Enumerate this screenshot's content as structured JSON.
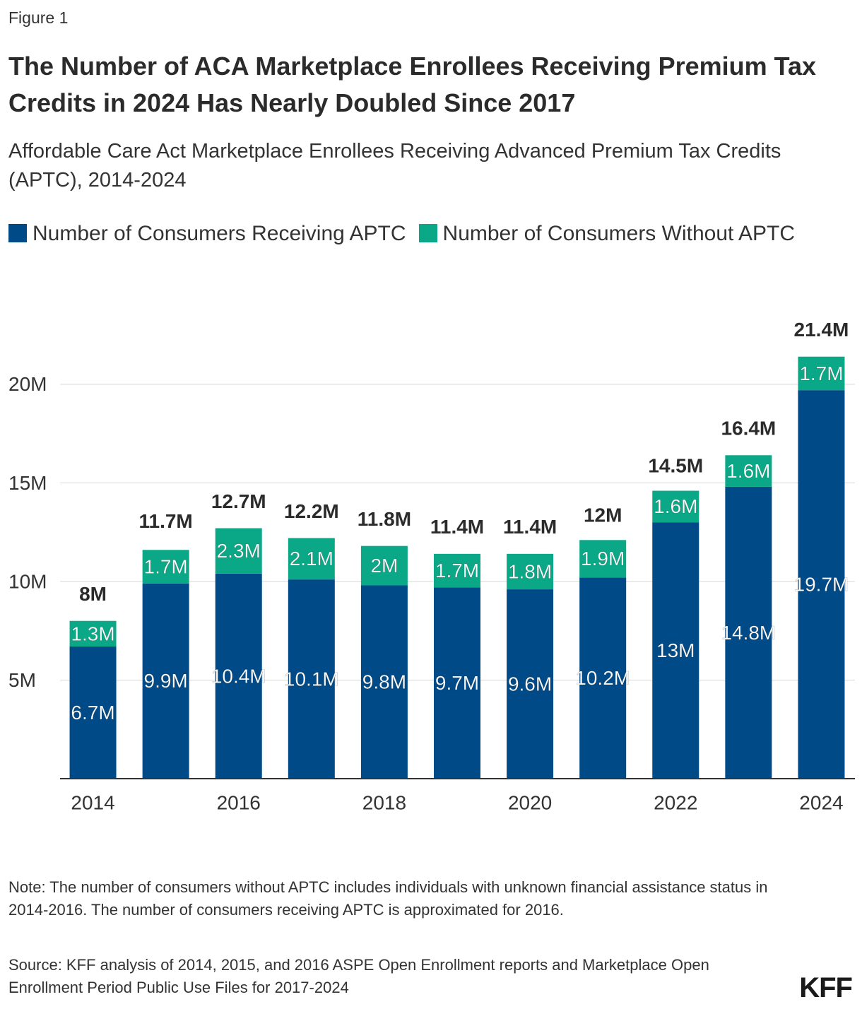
{
  "figure_label": "Figure 1",
  "chart_data": {
    "type": "stacked_bar",
    "title": "The Number of ACA Marketplace Enrollees Receiving Premium Tax Credits in 2024 Has Nearly Doubled Since 2017",
    "subtitle": "Affordable Care Act Marketplace Enrollees Receiving Advanced Premium Tax Credits (APTC), 2014-2024",
    "categories": [
      "2014",
      null,
      "2016",
      null,
      "2018",
      null,
      "2020",
      null,
      "2022",
      null,
      "2024"
    ],
    "series": [
      {
        "name": "Number of Consumers Receiving APTC",
        "color": "#004a87",
        "values": [
          6700000,
          9900000,
          10400000,
          10100000,
          9800000,
          9700000,
          9600000,
          10200000,
          13000000,
          14800000,
          19700000
        ],
        "value_labels": [
          "6.7M",
          "9.9M",
          "10.4M",
          "10.1M",
          "9.8M",
          "9.7M",
          "9.6M",
          "10.2M",
          "13M",
          "14.8M",
          "19.7M"
        ]
      },
      {
        "name": "Number of Consumers Without APTC",
        "color": "#0ba887",
        "values": [
          1300000,
          1700000,
          2300000,
          2100000,
          2000000,
          1700000,
          1800000,
          1900000,
          1600000,
          1600000,
          1700000
        ],
        "value_labels": [
          "1.3M",
          "1.7M",
          "2.3M",
          "2.1M",
          "2M",
          "1.7M",
          "1.8M",
          "1.9M",
          "1.6M",
          "1.6M",
          "1.7M"
        ]
      }
    ],
    "totals": [
      8000000,
      11700000,
      12700000,
      12200000,
      11800000,
      11400000,
      11400000,
      12000000,
      14500000,
      16400000,
      21400000
    ],
    "total_labels": [
      "8M",
      "11.7M",
      "12.7M",
      "12.2M",
      "11.8M",
      "11.4M",
      "11.4M",
      "12M",
      "14.5M",
      "16.4M",
      "21.4M"
    ],
    "ylim": [
      0,
      22000000
    ],
    "yticks": [
      {
        "value": 5000000,
        "label": "5M"
      },
      {
        "value": 10000000,
        "label": "10M"
      },
      {
        "value": 15000000,
        "label": "15M"
      },
      {
        "value": 20000000,
        "label": "20M"
      }
    ],
    "grid": true
  },
  "note": "Note: The number of consumers without APTC includes individuals with unknown financial assistance status in 2014-2016. The number of consumers receiving APTC is approximated for 2016.",
  "source": "Source: KFF analysis of 2014, 2015, and 2016 ASPE Open Enrollment reports and Marketplace Open Enrollment Period Public Use Files for 2017-2024",
  "logo": "KFF"
}
